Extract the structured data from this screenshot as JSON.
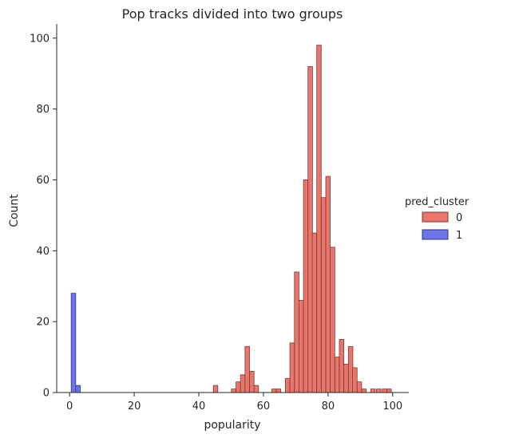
{
  "chart_data": {
    "type": "bar",
    "title": "Pop tracks divided into two groups",
    "xlabel": "popularity",
    "ylabel": "Count",
    "xlim": [
      -4,
      105
    ],
    "ylim": [
      0,
      104
    ],
    "x_ticks": [
      0,
      20,
      40,
      60,
      80,
      100
    ],
    "y_ticks": [
      0,
      20,
      40,
      60,
      80,
      100
    ],
    "bin_width": 1.39,
    "legend": {
      "title": "pred_cluster",
      "placement": "right"
    },
    "series": [
      {
        "name": "0",
        "color": "#e8766d",
        "edge_color": "#7a3a35",
        "bins": [
          [
            44.5,
            2
          ],
          [
            50.1,
            1
          ],
          [
            51.5,
            3
          ],
          [
            52.9,
            5
          ],
          [
            54.3,
            13
          ],
          [
            55.7,
            6
          ],
          [
            57.1,
            2
          ],
          [
            62.6,
            1
          ],
          [
            64.0,
            1
          ],
          [
            66.8,
            4
          ],
          [
            68.2,
            14
          ],
          [
            69.6,
            34
          ],
          [
            71.0,
            26
          ],
          [
            72.4,
            60
          ],
          [
            73.8,
            92
          ],
          [
            75.1,
            45
          ],
          [
            76.5,
            98
          ],
          [
            77.9,
            55
          ],
          [
            79.3,
            61
          ],
          [
            80.7,
            41
          ],
          [
            82.1,
            10
          ],
          [
            83.5,
            15
          ],
          [
            84.9,
            8
          ],
          [
            86.3,
            13
          ],
          [
            87.6,
            7
          ],
          [
            89.0,
            3
          ],
          [
            90.4,
            1
          ],
          [
            93.2,
            1
          ],
          [
            95.0,
            1
          ],
          [
            96.8,
            1
          ],
          [
            98.2,
            1
          ]
        ]
      },
      {
        "name": "1",
        "color": "#6c74e8",
        "edge_color": "#2f3580",
        "bins": [
          [
            0.5,
            28
          ],
          [
            1.9,
            2
          ],
          [
            3.3,
            0
          ]
        ]
      }
    ]
  }
}
